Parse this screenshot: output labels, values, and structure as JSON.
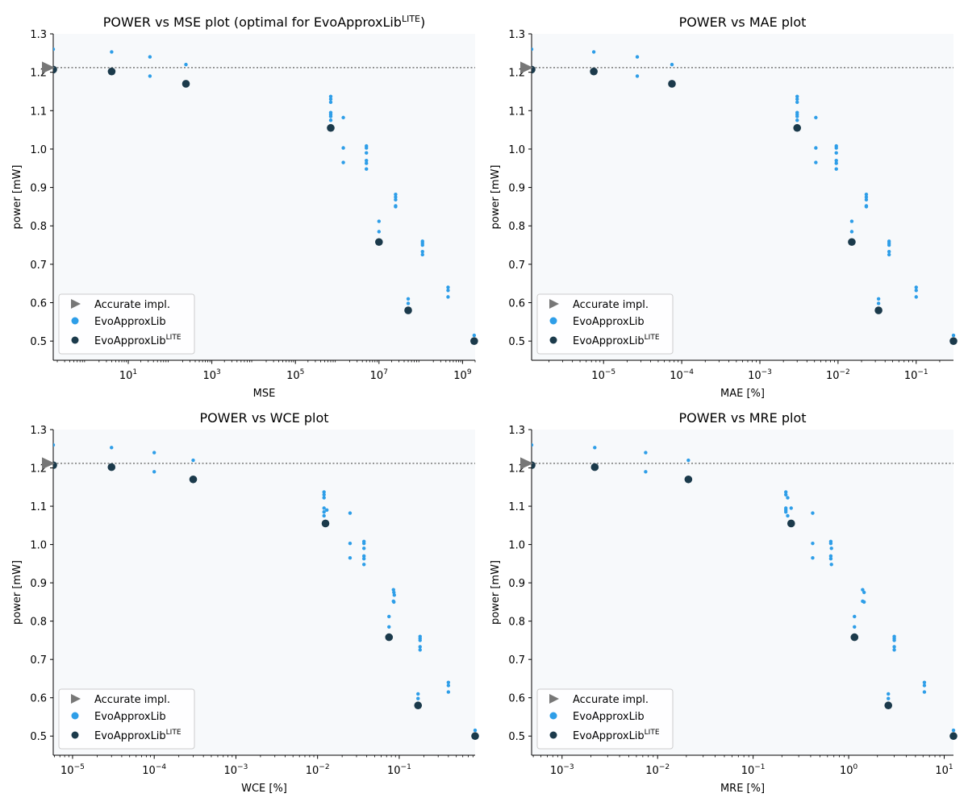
{
  "colors": {
    "accurate": "#777777",
    "evo": "#2e9ee8",
    "lite": "#1b3a4b",
    "plot_bg": "#f7f9fb",
    "reference_line": "#777777"
  },
  "legend": {
    "accurate": "Accurate impl.",
    "evo": "EvoApproxLib",
    "lite_base": "EvoApproxLib",
    "lite_sup": "LITE"
  },
  "chart_data": [
    {
      "type": "scatter",
      "title": "POWER vs MSE plot (optimal for EvoApproxLib",
      "title_sup": "LITE",
      "title_suffix": ")",
      "xlabel": "MSE",
      "ylabel": "power [mW]",
      "xscale": "log",
      "xlim": [
        0.16,
        2000000000
      ],
      "ylim": [
        0.45,
        1.3
      ],
      "yticks": [
        "0.5",
        "0.6",
        "0.7",
        "0.8",
        "0.9",
        "1.0",
        "1.1",
        "1.2",
        "1.3"
      ],
      "xticks": [
        {
          "base": "10",
          "exp": "1",
          "value": 10
        },
        {
          "base": "10",
          "exp": "3",
          "value": 1000
        },
        {
          "base": "10",
          "exp": "5",
          "value": 100000
        },
        {
          "base": "10",
          "exp": "7",
          "value": 10000000
        },
        {
          "base": "10",
          "exp": "9",
          "value": 1000000000
        }
      ],
      "reference_power": 1.212,
      "accurate": [
        [
          0.16,
          1.212
        ]
      ],
      "evo": [
        [
          0.16,
          1.26
        ],
        [
          4,
          1.253
        ],
        [
          33,
          1.24
        ],
        [
          33,
          1.19
        ],
        [
          240,
          1.22
        ],
        [
          700000,
          1.137
        ],
        [
          700000,
          1.13
        ],
        [
          700000,
          1.122
        ],
        [
          700000,
          1.095
        ],
        [
          700000,
          1.09
        ],
        [
          700000,
          1.085
        ],
        [
          700000,
          1.075
        ],
        [
          1400000,
          1.082
        ],
        [
          1400000,
          1.003
        ],
        [
          1400000,
          0.965
        ],
        [
          5000000,
          1.008
        ],
        [
          5000000,
          1.003
        ],
        [
          5000000,
          0.99
        ],
        [
          5000000,
          0.97
        ],
        [
          5000000,
          0.963
        ],
        [
          5000000,
          0.948
        ],
        [
          25000000,
          0.882
        ],
        [
          25000000,
          0.875
        ],
        [
          25000000,
          0.868
        ],
        [
          25000000,
          0.852
        ],
        [
          25000000,
          0.85
        ],
        [
          10000000,
          0.812
        ],
        [
          10000000,
          0.785
        ],
        [
          110000000,
          0.76
        ],
        [
          110000000,
          0.755
        ],
        [
          110000000,
          0.75
        ],
        [
          110000000,
          0.733
        ],
        [
          110000000,
          0.725
        ],
        [
          50000000,
          0.61
        ],
        [
          50000000,
          0.598
        ],
        [
          450000000,
          0.64
        ],
        [
          450000000,
          0.632
        ],
        [
          450000000,
          0.615
        ],
        [
          1900000000,
          0.515
        ]
      ],
      "lite": [
        [
          0.16,
          1.207
        ],
        [
          4,
          1.202
        ],
        [
          240,
          1.17
        ],
        [
          700000,
          1.055
        ],
        [
          10000000,
          0.758
        ],
        [
          50000000,
          0.58
        ],
        [
          1900000000,
          0.5
        ]
      ]
    },
    {
      "type": "scatter",
      "title": "POWER vs MAE plot",
      "xlabel": "MAE [%]",
      "ylabel": "power [mW]",
      "xscale": "log",
      "xlim": [
        1.2e-06,
        0.3
      ],
      "ylim": [
        0.45,
        1.3
      ],
      "yticks": [
        "0.5",
        "0.6",
        "0.7",
        "0.8",
        "0.9",
        "1.0",
        "1.1",
        "1.2",
        "1.3"
      ],
      "xticks": [
        {
          "base": "10",
          "exp": "−5",
          "value": 1e-05
        },
        {
          "base": "10",
          "exp": "−4",
          "value": 0.0001
        },
        {
          "base": "10",
          "exp": "−3",
          "value": 0.001
        },
        {
          "base": "10",
          "exp": "−2",
          "value": 0.01
        },
        {
          "base": "10",
          "exp": "−1",
          "value": 0.1
        }
      ],
      "reference_power": 1.212,
      "accurate": [
        [
          1.2e-06,
          1.212
        ]
      ],
      "evo": [
        [
          1.2e-06,
          1.26
        ],
        [
          7.5e-06,
          1.253
        ],
        [
          2.7e-05,
          1.24
        ],
        [
          2.7e-05,
          1.19
        ],
        [
          7.5e-05,
          1.22
        ],
        [
          0.003,
          1.137
        ],
        [
          0.003,
          1.13
        ],
        [
          0.003,
          1.122
        ],
        [
          0.003,
          1.095
        ],
        [
          0.003,
          1.09
        ],
        [
          0.003,
          1.085
        ],
        [
          0.003,
          1.075
        ],
        [
          0.0052,
          1.082
        ],
        [
          0.0052,
          1.003
        ],
        [
          0.0052,
          0.965
        ],
        [
          0.0095,
          1.008
        ],
        [
          0.0095,
          1.003
        ],
        [
          0.0095,
          0.99
        ],
        [
          0.0095,
          0.97
        ],
        [
          0.0095,
          0.963
        ],
        [
          0.0095,
          0.948
        ],
        [
          0.023,
          0.882
        ],
        [
          0.023,
          0.875
        ],
        [
          0.023,
          0.868
        ],
        [
          0.023,
          0.852
        ],
        [
          0.023,
          0.85
        ],
        [
          0.015,
          0.812
        ],
        [
          0.015,
          0.785
        ],
        [
          0.045,
          0.76
        ],
        [
          0.045,
          0.755
        ],
        [
          0.045,
          0.75
        ],
        [
          0.045,
          0.733
        ],
        [
          0.045,
          0.725
        ],
        [
          0.033,
          0.61
        ],
        [
          0.033,
          0.598
        ],
        [
          0.1,
          0.64
        ],
        [
          0.1,
          0.632
        ],
        [
          0.1,
          0.615
        ],
        [
          0.3,
          0.515
        ]
      ],
      "lite": [
        [
          1.2e-06,
          1.207
        ],
        [
          7.5e-06,
          1.202
        ],
        [
          7.5e-05,
          1.17
        ],
        [
          0.003,
          1.055
        ],
        [
          0.015,
          0.758
        ],
        [
          0.033,
          0.58
        ],
        [
          0.3,
          0.5
        ]
      ]
    },
    {
      "type": "scatter",
      "title": "POWER vs WCE plot",
      "xlabel": "WCE [%]",
      "ylabel": "power [mW]",
      "xscale": "log",
      "xlim": [
        5.8e-06,
        0.85
      ],
      "ylim": [
        0.45,
        1.3
      ],
      "yticks": [
        "0.5",
        "0.6",
        "0.7",
        "0.8",
        "0.9",
        "1.0",
        "1.1",
        "1.2",
        "1.3"
      ],
      "xticks": [
        {
          "base": "10",
          "exp": "−5",
          "value": 1e-05
        },
        {
          "base": "10",
          "exp": "−4",
          "value": 0.0001
        },
        {
          "base": "10",
          "exp": "−3",
          "value": 0.001
        },
        {
          "base": "10",
          "exp": "−2",
          "value": 0.01
        },
        {
          "base": "10",
          "exp": "−1",
          "value": 0.1
        }
      ],
      "reference_power": 1.212,
      "accurate": [
        [
          5.8e-06,
          1.212
        ]
      ],
      "evo": [
        [
          5.8e-06,
          1.26
        ],
        [
          3e-05,
          1.253
        ],
        [
          0.0001,
          1.24
        ],
        [
          0.0001,
          1.19
        ],
        [
          0.0003,
          1.22
        ],
        [
          0.012,
          1.137
        ],
        [
          0.012,
          1.13
        ],
        [
          0.012,
          1.122
        ],
        [
          0.012,
          1.095
        ],
        [
          0.013,
          1.09
        ],
        [
          0.012,
          1.085
        ],
        [
          0.012,
          1.075
        ],
        [
          0.025,
          1.082
        ],
        [
          0.025,
          1.003
        ],
        [
          0.025,
          0.965
        ],
        [
          0.037,
          1.008
        ],
        [
          0.037,
          1.003
        ],
        [
          0.037,
          0.99
        ],
        [
          0.037,
          0.97
        ],
        [
          0.037,
          0.963
        ],
        [
          0.037,
          0.948
        ],
        [
          0.085,
          0.882
        ],
        [
          0.086,
          0.875
        ],
        [
          0.087,
          0.868
        ],
        [
          0.085,
          0.852
        ],
        [
          0.086,
          0.85
        ],
        [
          0.075,
          0.812
        ],
        [
          0.075,
          0.785
        ],
        [
          0.18,
          0.76
        ],
        [
          0.18,
          0.755
        ],
        [
          0.18,
          0.75
        ],
        [
          0.18,
          0.733
        ],
        [
          0.18,
          0.725
        ],
        [
          0.17,
          0.61
        ],
        [
          0.17,
          0.598
        ],
        [
          0.4,
          0.64
        ],
        [
          0.4,
          0.632
        ],
        [
          0.4,
          0.615
        ],
        [
          0.85,
          0.515
        ]
      ],
      "lite": [
        [
          5.8e-06,
          1.207
        ],
        [
          3e-05,
          1.202
        ],
        [
          0.0003,
          1.17
        ],
        [
          0.0125,
          1.055
        ],
        [
          0.075,
          0.758
        ],
        [
          0.17,
          0.58
        ],
        [
          0.85,
          0.5
        ]
      ]
    },
    {
      "type": "scatter",
      "title": "POWER vs MRE plot",
      "xlabel": "MRE [%]",
      "ylabel": "power [mW]",
      "xscale": "log",
      "xlim": [
        0.00048,
        12.5
      ],
      "ylim": [
        0.45,
        1.3
      ],
      "yticks": [
        "0.5",
        "0.6",
        "0.7",
        "0.8",
        "0.9",
        "1.0",
        "1.1",
        "1.2",
        "1.3"
      ],
      "xticks": [
        {
          "base": "10",
          "exp": "−3",
          "value": 0.001
        },
        {
          "base": "10",
          "exp": "−2",
          "value": 0.01
        },
        {
          "base": "10",
          "exp": "−1",
          "value": 0.1
        },
        {
          "base": "10",
          "exp": "0",
          "value": 1
        },
        {
          "base": "10",
          "exp": "1",
          "value": 10
        }
      ],
      "reference_power": 1.212,
      "accurate": [
        [
          0.00048,
          1.212
        ]
      ],
      "evo": [
        [
          0.00048,
          1.26
        ],
        [
          0.0022,
          1.253
        ],
        [
          0.0075,
          1.24
        ],
        [
          0.0075,
          1.19
        ],
        [
          0.021,
          1.22
        ],
        [
          0.22,
          1.137
        ],
        [
          0.22,
          1.13
        ],
        [
          0.23,
          1.122
        ],
        [
          0.22,
          1.095
        ],
        [
          0.22,
          1.09
        ],
        [
          0.22,
          1.085
        ],
        [
          0.23,
          1.075
        ],
        [
          0.25,
          1.095
        ],
        [
          0.42,
          1.082
        ],
        [
          0.42,
          1.003
        ],
        [
          0.42,
          0.965
        ],
        [
          0.65,
          1.008
        ],
        [
          0.65,
          1.003
        ],
        [
          0.66,
          0.99
        ],
        [
          0.65,
          0.97
        ],
        [
          0.65,
          0.963
        ],
        [
          0.66,
          0.948
        ],
        [
          1.4,
          0.882
        ],
        [
          1.45,
          0.875
        ],
        [
          1.4,
          0.852
        ],
        [
          1.45,
          0.85
        ],
        [
          1.15,
          0.812
        ],
        [
          1.15,
          0.785
        ],
        [
          3.0,
          0.76
        ],
        [
          3.0,
          0.755
        ],
        [
          3.0,
          0.75
        ],
        [
          3.0,
          0.733
        ],
        [
          3.0,
          0.725
        ],
        [
          2.6,
          0.61
        ],
        [
          2.6,
          0.598
        ],
        [
          6.2,
          0.64
        ],
        [
          6.2,
          0.632
        ],
        [
          6.2,
          0.615
        ],
        [
          12.5,
          0.515
        ]
      ],
      "lite": [
        [
          0.00048,
          1.207
        ],
        [
          0.0022,
          1.202
        ],
        [
          0.021,
          1.17
        ],
        [
          0.25,
          1.055
        ],
        [
          1.15,
          0.758
        ],
        [
          2.6,
          0.58
        ],
        [
          12.5,
          0.5
        ]
      ]
    }
  ]
}
